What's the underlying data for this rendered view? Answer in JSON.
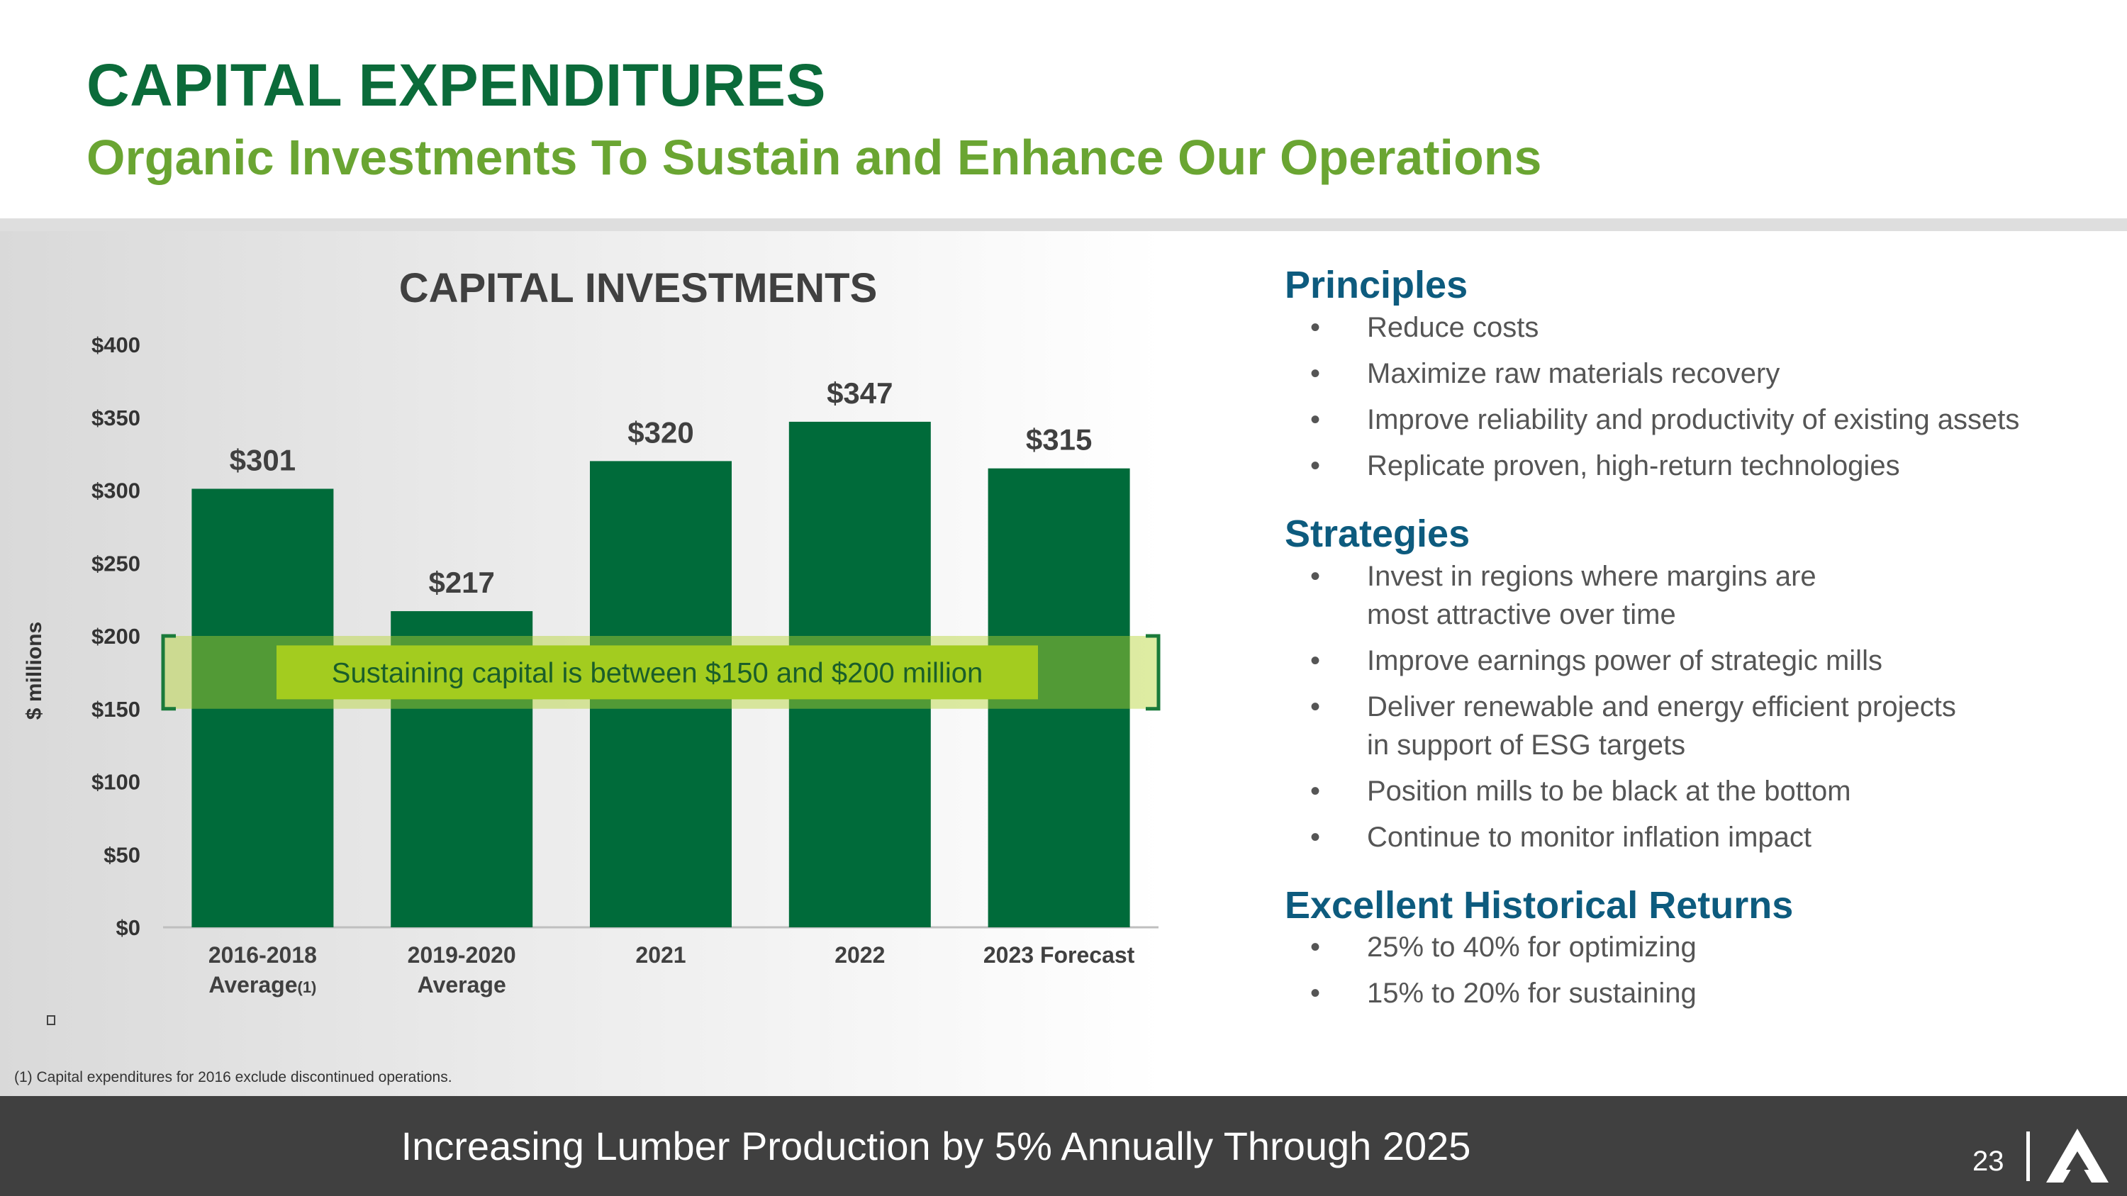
{
  "header": {
    "title": "CAPITAL EXPENDITURES",
    "subtitle": "Organic Investments To Sustain and Enhance Our Operations"
  },
  "chart_data": {
    "type": "bar",
    "title": "CAPITAL INVESTMENTS",
    "ylabel": "$ millions",
    "xlabel": "",
    "ylim": [
      0,
      400
    ],
    "y_ticks": [
      {
        "value": 0,
        "label": "$0"
      },
      {
        "value": 50,
        "label": "$50"
      },
      {
        "value": 100,
        "label": "$100"
      },
      {
        "value": 150,
        "label": "$150"
      },
      {
        "value": 200,
        "label": "$200"
      },
      {
        "value": 250,
        "label": "$250"
      },
      {
        "value": 300,
        "label": "$300"
      },
      {
        "value": 350,
        "label": "$350"
      },
      {
        "value": 400,
        "label": "$400"
      }
    ],
    "categories": [
      {
        "line1": "2016-2018",
        "line2": "Average",
        "superscript": "(1)"
      },
      {
        "line1": "2019-2020",
        "line2": "Average",
        "superscript": ""
      },
      {
        "line1": "2021",
        "line2": "",
        "superscript": ""
      },
      {
        "line1": "2022",
        "line2": "",
        "superscript": ""
      },
      {
        "line1": "2023 Forecast",
        "line2": "",
        "superscript": ""
      }
    ],
    "values": [
      301,
      217,
      320,
      347,
      315
    ],
    "data_labels": [
      "$301",
      "$217",
      "$320",
      "$347",
      "$315"
    ],
    "band": {
      "low": 150,
      "high": 200,
      "label": "Sustaining capital is between $150 and $200 million"
    },
    "colors": {
      "bar": "#006b3a",
      "band": "#b6d433",
      "band_label_bg": "#a3cc1f",
      "band_label_text": "#1a5e2a",
      "bracket": "#1a7a3a"
    }
  },
  "footnote": "(1) Capital expenditures for 2016 exclude discontinued operations.",
  "principles": {
    "heading": "Principles",
    "items": [
      "Reduce costs",
      "Maximize raw materials recovery",
      "Improve reliability and productivity of existing assets",
      "Replicate proven, high-return technologies"
    ]
  },
  "strategies": {
    "heading": "Strategies",
    "items": [
      [
        "Invest in regions where margins are",
        "most attractive over time"
      ],
      [
        "Improve earnings power of strategic mills"
      ],
      [
        "Deliver renewable and energy efficient projects",
        "in support of ESG targets"
      ],
      [
        "Position mills to be black at the bottom"
      ],
      [
        "Continue to monitor inflation impact"
      ]
    ]
  },
  "returns": {
    "heading": "Excellent Historical Returns",
    "items": [
      "25% to 40% for optimizing",
      "15% to 20% for sustaining"
    ]
  },
  "bullet_glyph": "•",
  "footer": {
    "text": "Increasing Lumber Production by 5% Annually Through 2025",
    "page_number": "23"
  }
}
